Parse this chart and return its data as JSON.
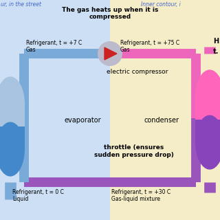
{
  "bg_left_color": "#ccdff5",
  "bg_right_color": "#f5ecc8",
  "title_text": "The gas heats up when it is\ncompressed",
  "left_label_italic": "ur, in the street",
  "right_label_italic": "Inner contour, i",
  "label_color": "#4466cc",
  "pipe_blue": "#7aaad8",
  "pipe_pink": "#ee66bb",
  "pipe_purple": "#9955bb",
  "evap_top_color": "#a8c4e0",
  "evap_bot_color": "#4488cc",
  "cond_top_color": "#ff66bb",
  "cond_bot_color": "#8844bb",
  "comp_circle_color": "#bbbbcc",
  "arrow_color": "#cc2222",
  "label_electric": "electric compressor",
  "label_evaporator": "evaporator",
  "label_condenser": "condenser",
  "label_throttle": "throttle (ensures\nsudden pressure drop)",
  "label_ref_tl": "Refrigerant, t = +7 C\nGas",
  "label_ref_tr": "Refrigerant, t = +75 C\nGas",
  "label_ref_bl": "Refrigerant, t = 0 C\nLiquid",
  "label_ref_br": "Refrigerant, t = +30 C\nGas-liquid mixture",
  "right_text_top": "H",
  "right_text_bot": "t."
}
